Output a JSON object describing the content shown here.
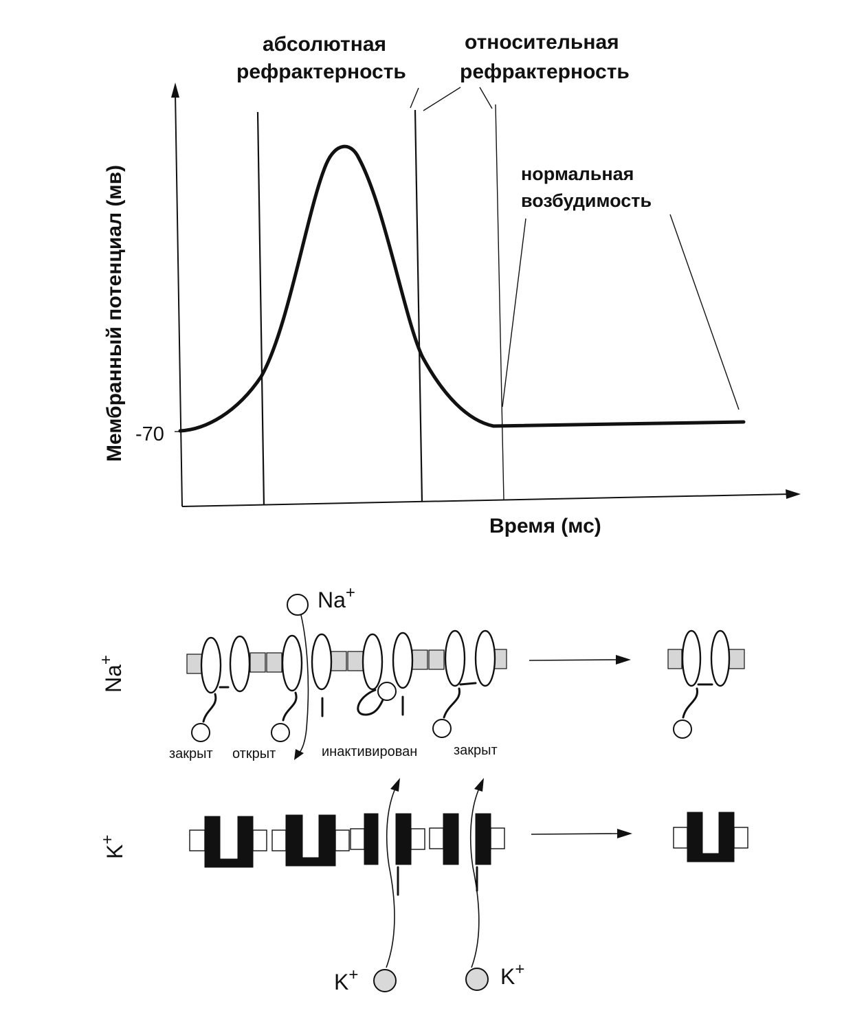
{
  "chart": {
    "y_axis_label": "Мембранный потенциал  (мв)",
    "x_axis_label": "Время (мс)",
    "resting_tick_label": "-70",
    "absolute_refractory": [
      "абсолютная",
      "рефрактерность"
    ],
    "relative_refractory": [
      "относительная",
      "рефрактерность"
    ],
    "normal_excitability": [
      "нормальная",
      "возбудимость"
    ]
  },
  "channels": {
    "na_row_label": "Na",
    "k_row_label": "K",
    "plus": "+",
    "na_ion_label": "Na",
    "k_ion_label": "K",
    "states": [
      "закрыт",
      "открыт",
      "инактивирован",
      "закрыт"
    ]
  },
  "colors": {
    "ink": "#111111",
    "membrane_na": "#d6d6d6",
    "membrane_k": "#ffffff",
    "k_channel": "#111111"
  }
}
